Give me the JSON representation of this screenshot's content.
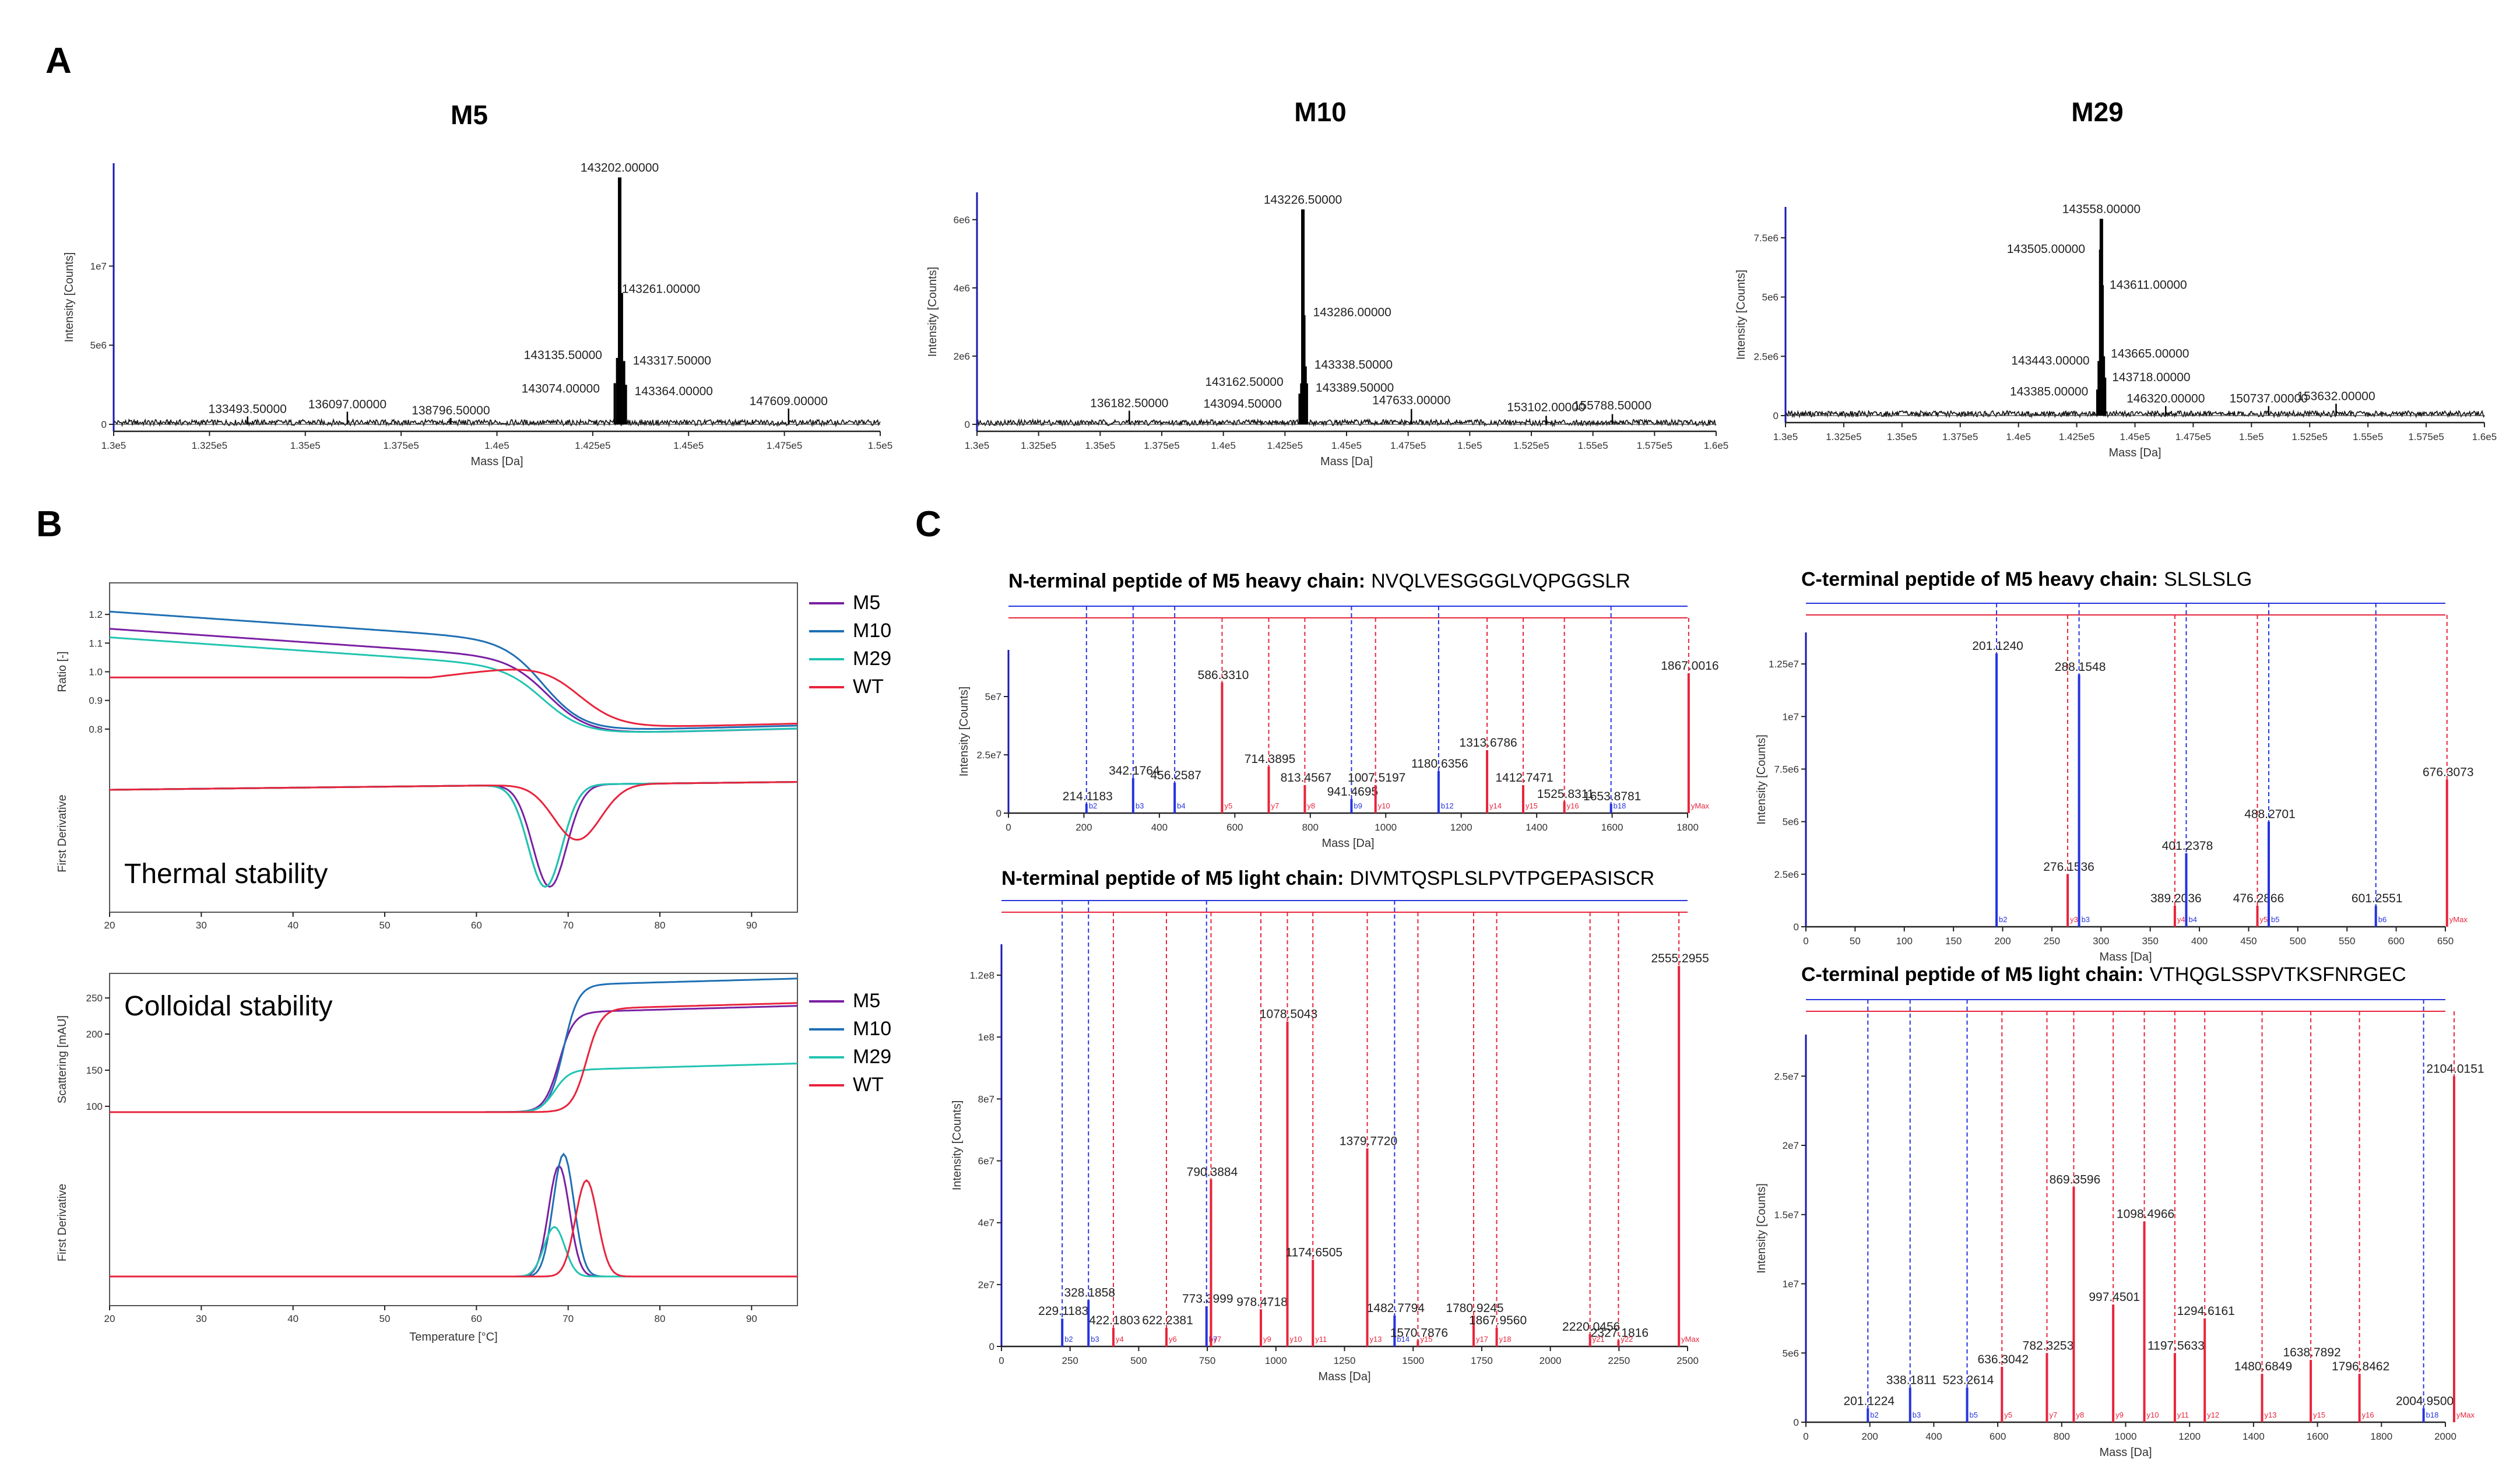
{
  "panel_labels": {
    "a": "A",
    "b": "B",
    "c": "C"
  },
  "colors": {
    "M5": "#7a1fa2",
    "M10": "#1f6fb4",
    "M29": "#21c4b0",
    "WT": "#e8243c",
    "b_ion": "#2533e0",
    "y_ion": "#e8243c",
    "axis": "#1a1ab0"
  },
  "chart_data": [
    {
      "id": "A-M5",
      "type": "line",
      "title": "M5",
      "xlabel": "Mass [Da]",
      "ylabel": "Intensity [Counts]",
      "xlim": [
        130000,
        150000
      ],
      "xticks": [
        "1.3e5",
        "1.325e5",
        "1.35e5",
        "1.375e5",
        "1.4e5",
        "1.425e5",
        "1.45e5",
        "1.475e5",
        "1.5e5"
      ],
      "ylim": [
        0,
        16500000
      ],
      "yticks": [
        "0",
        "5e6",
        "1e7"
      ],
      "peaks": [
        {
          "mass": 143202,
          "label": "143202.00000",
          "intensity": 15600000
        },
        {
          "mass": 143261,
          "label": "143261.00000",
          "intensity": 8300000
        },
        {
          "mass": 143135.5,
          "label": "143135.50000",
          "intensity": 4200000
        },
        {
          "mass": 143317.5,
          "label": "143317.50000",
          "intensity": 4000000
        },
        {
          "mass": 143074,
          "label": "143074.00000",
          "intensity": 2600000
        },
        {
          "mass": 143364,
          "label": "143364.00000",
          "intensity": 2500000
        },
        {
          "mass": 133493.5,
          "label": "133493.50000",
          "intensity": 500000
        },
        {
          "mass": 136097,
          "label": "136097.00000",
          "intensity": 800000
        },
        {
          "mass": 138796.5,
          "label": "138796.50000",
          "intensity": 400000
        },
        {
          "mass": 147609,
          "label": "147609.00000",
          "intensity": 1000000
        }
      ]
    },
    {
      "id": "A-M10",
      "type": "line",
      "title": "M10",
      "xlabel": "Mass [Da]",
      "ylabel": "Intensity [Counts]",
      "xlim": [
        130000,
        160000
      ],
      "xticks": [
        "1.3e5",
        "1.325e5",
        "1.35e5",
        "1.375e5",
        "1.4e5",
        "1.425e5",
        "1.45e5",
        "1.475e5",
        "1.5e5",
        "1.525e5",
        "1.55e5",
        "1.575e5",
        "1.6e5"
      ],
      "ylim": [
        0,
        6800000
      ],
      "yticks": [
        "0",
        "2e6",
        "4e6",
        "6e6"
      ],
      "peaks": [
        {
          "mass": 143226.5,
          "label": "143226.50000",
          "intensity": 6300000
        },
        {
          "mass": 143286,
          "label": "143286.00000",
          "intensity": 3200000
        },
        {
          "mass": 143338.5,
          "label": "143338.50000",
          "intensity": 1700000
        },
        {
          "mass": 143389.5,
          "label": "143389.50000",
          "intensity": 1200000
        },
        {
          "mass": 143162.5,
          "label": "143162.50000",
          "intensity": 1200000
        },
        {
          "mass": 143094.5,
          "label": "143094.50000",
          "intensity": 900000
        },
        {
          "mass": 136182.5,
          "label": "136182.50000",
          "intensity": 400000
        },
        {
          "mass": 147633,
          "label": "147633.00000",
          "intensity": 450000
        },
        {
          "mass": 153102,
          "label": "153102.00000",
          "intensity": 250000
        },
        {
          "mass": 155788.5,
          "label": "155788.50000",
          "intensity": 300000
        }
      ]
    },
    {
      "id": "A-M29",
      "type": "line",
      "title": "M29",
      "xlabel": "Mass [Da]",
      "ylabel": "Intensity [Counts]",
      "xlim": [
        130000,
        160000
      ],
      "xticks": [
        "1.3e5",
        "1.325e5",
        "1.35e5",
        "1.375e5",
        "1.4e5",
        "1.425e5",
        "1.45e5",
        "1.475e5",
        "1.5e5",
        "1.525e5",
        "1.55e5",
        "1.575e5",
        "1.6e5"
      ],
      "ylim": [
        0,
        8800000
      ],
      "yticks": [
        "0",
        "2.5e6",
        "5e6",
        "7.5e6"
      ],
      "peaks": [
        {
          "mass": 143558,
          "label": "143558.00000",
          "intensity": 8300000
        },
        {
          "mass": 143505,
          "label": "143505.00000",
          "intensity": 7000000
        },
        {
          "mass": 143611,
          "label": "143611.00000",
          "intensity": 5500000
        },
        {
          "mass": 143665,
          "label": "143665.00000",
          "intensity": 2500000
        },
        {
          "mass": 143443,
          "label": "143443.00000",
          "intensity": 2300000
        },
        {
          "mass": 143718,
          "label": "143718.00000",
          "intensity": 1600000
        },
        {
          "mass": 143385,
          "label": "143385.00000",
          "intensity": 1100000
        },
        {
          "mass": 146320,
          "label": "146320.00000",
          "intensity": 400000
        },
        {
          "mass": 150737,
          "label": "150737.00000",
          "intensity": 400000
        },
        {
          "mass": 153632,
          "label": "153632.00000",
          "intensity": 500000
        }
      ]
    },
    {
      "id": "B-thermal",
      "type": "line",
      "annotation": "Thermal stability",
      "ylabel_top": "Ratio [-]",
      "ylabel_bottom": "First Derivative",
      "xlim": [
        20,
        95
      ],
      "xticks": [
        "20",
        "30",
        "40",
        "50",
        "60",
        "70",
        "80",
        "90"
      ],
      "ylim_top": [
        0.7,
        1.3
      ],
      "yticks_top": [
        "0.8",
        "0.9",
        "1.0",
        "1.1",
        "1.2"
      ],
      "legend": [
        "M5",
        "M10",
        "M29",
        "WT"
      ],
      "series": [
        {
          "name": "M5",
          "ratio_start": 1.15,
          "ratio_end": 0.78,
          "tm": 68
        },
        {
          "name": "M10",
          "ratio_start": 1.21,
          "ratio_end": 0.79,
          "tm": 67.5
        },
        {
          "name": "M29",
          "ratio_start": 1.12,
          "ratio_end": 0.78,
          "tm": 67.5
        },
        {
          "name": "WT",
          "ratio_start": 0.98,
          "ratio_end": 0.8,
          "tm": 71
        }
      ]
    },
    {
      "id": "B-colloidal",
      "type": "line",
      "annotation": "Colloidal stability",
      "ylabel_top": "Scattering [mAU]",
      "ylabel_bottom": "First Derivative",
      "xlabel": "Temperature [°C]",
      "xlim": [
        20,
        95
      ],
      "xticks": [
        "20",
        "30",
        "40",
        "50",
        "60",
        "70",
        "80",
        "90"
      ],
      "ylim_top": [
        50,
        280
      ],
      "yticks_top": [
        "100",
        "150",
        "200",
        "250"
      ],
      "legend": [
        "M5",
        "M10",
        "M29",
        "WT"
      ],
      "series": [
        {
          "name": "M5",
          "start": 92,
          "end": 230,
          "tagg": 69
        },
        {
          "name": "M10",
          "start": 92,
          "end": 268,
          "tagg": 69.5
        },
        {
          "name": "M29",
          "start": 92,
          "end": 150,
          "tagg": 68.5
        },
        {
          "name": "WT",
          "start": 92,
          "end": 235,
          "tagg": 72
        }
      ]
    },
    {
      "id": "C-nt-heavy",
      "type": "bar",
      "title_prefix": "N-terminal peptide of M5 heavy chain:",
      "sequence": "NVQLVESGGGLVQPGGSLR",
      "xlabel": "Mass [Da]",
      "ylabel": "Intensity [Counts]",
      "xlim": [
        0,
        1900
      ],
      "xticks": [
        "0",
        "200",
        "400",
        "600",
        "800",
        "1000",
        "1200",
        "1400",
        "1600",
        "1800"
      ],
      "ylim": [
        0,
        70000000
      ],
      "yticks": [
        "0",
        "2.5e7",
        "5e7"
      ],
      "peaks": [
        {
          "mz": 214.1183,
          "label": "214.1183",
          "intensity": 4000000,
          "ion": "b2",
          "kind": "b"
        },
        {
          "mz": 342.1764,
          "label": "342.1764",
          "intensity": 15000000,
          "ion": "b3",
          "kind": "b"
        },
        {
          "mz": 456.2587,
          "label": "456.2587",
          "intensity": 13000000,
          "ion": "b4",
          "kind": "b"
        },
        {
          "mz": 586.331,
          "label": "586.3310",
          "intensity": 56000000,
          "ion": "y5",
          "kind": "y"
        },
        {
          "mz": 714.3895,
          "label": "714.3895",
          "intensity": 20000000,
          "ion": "y7",
          "kind": "y"
        },
        {
          "mz": 813.4567,
          "label": "813.4567",
          "intensity": 12000000,
          "ion": "y8",
          "kind": "y"
        },
        {
          "mz": 941.4695,
          "label": "941.4695",
          "intensity": 6000000,
          "ion": "b9",
          "kind": "b"
        },
        {
          "mz": 1007.5197,
          "label": "1007.5197",
          "intensity": 12000000,
          "ion": "y10",
          "kind": "y"
        },
        {
          "mz": 1180.6356,
          "label": "1180.6356",
          "intensity": 18000000,
          "ion": "b12",
          "kind": "b"
        },
        {
          "mz": 1313.6786,
          "label": "1313.6786",
          "intensity": 27000000,
          "ion": "y14",
          "kind": "y"
        },
        {
          "mz": 1412.7471,
          "label": "1412.7471",
          "intensity": 12000000,
          "ion": "y15",
          "kind": "y"
        },
        {
          "mz": 1525.8311,
          "label": "1525.8311",
          "intensity": 5000000,
          "ion": "y16",
          "kind": "y"
        },
        {
          "mz": 1653.8781,
          "label": "1653.8781",
          "intensity": 4000000,
          "ion": "b18",
          "kind": "b"
        },
        {
          "mz": 1867.0016,
          "label": "1867.0016",
          "intensity": 60000000,
          "ion": "yMax",
          "kind": "y"
        }
      ]
    },
    {
      "id": "C-nt-light",
      "type": "bar",
      "title_prefix": "N-terminal peptide of M5 light chain:",
      "sequence": "DIVMTQSPLSLPVTPGEPASISCR",
      "xlabel": "Mass [Da]",
      "ylabel": "Intensity [Counts]",
      "xlim": [
        0,
        2600
      ],
      "xticks": [
        "0",
        "250",
        "500",
        "750",
        "1000",
        "1250",
        "1500",
        "1750",
        "2000",
        "2250",
        "2500"
      ],
      "ylim": [
        0,
        130000000
      ],
      "yticks": [
        "0",
        "2e7",
        "4e7",
        "6e7",
        "8e7",
        "1e8",
        "1.2e8"
      ],
      "peaks": [
        {
          "mz": 229.1183,
          "label": "229.1183",
          "intensity": 9000000,
          "ion": "b2",
          "kind": "b"
        },
        {
          "mz": 328.1858,
          "label": "328.1858",
          "intensity": 15000000,
          "ion": "b3",
          "kind": "b"
        },
        {
          "mz": 422.1803,
          "label": "422.1803",
          "intensity": 6000000,
          "ion": "y4",
          "kind": "y"
        },
        {
          "mz": 622.2381,
          "label": "622.2381",
          "intensity": 6000000,
          "ion": "y6",
          "kind": "y"
        },
        {
          "mz": 773.3999,
          "label": "773.3999",
          "intensity": 13000000,
          "ion": "b7",
          "kind": "b"
        },
        {
          "mz": 790.3884,
          "label": "790.3884",
          "intensity": 54000000,
          "ion": "y7",
          "kind": "y"
        },
        {
          "mz": 978.4718,
          "label": "978.4718",
          "intensity": 12000000,
          "ion": "y9",
          "kind": "y"
        },
        {
          "mz": 1078.5043,
          "label": "1078.5043",
          "intensity": 105000000,
          "ion": "y10",
          "kind": "y"
        },
        {
          "mz": 1174.6505,
          "label": "1174.6505",
          "intensity": 28000000,
          "ion": "y11",
          "kind": "y"
        },
        {
          "mz": 1379.772,
          "label": "1379.7720",
          "intensity": 64000000,
          "ion": "y13",
          "kind": "y"
        },
        {
          "mz": 1482.7794,
          "label": "1482.7794",
          "intensity": 10000000,
          "ion": "b14",
          "kind": "b"
        },
        {
          "mz": 1570.7876,
          "label": "1570.7876",
          "intensity": 2000000,
          "ion": "y15",
          "kind": "y"
        },
        {
          "mz": 1780.9245,
          "label": "1780.9245",
          "intensity": 10000000,
          "ion": "y17",
          "kind": "y"
        },
        {
          "mz": 1867.956,
          "label": "1867.9560",
          "intensity": 6000000,
          "ion": "y18",
          "kind": "y"
        },
        {
          "mz": 2220.0456,
          "label": "2220.0456",
          "intensity": 4000000,
          "ion": "y21",
          "kind": "y"
        },
        {
          "mz": 2327.1816,
          "label": "2327.1816",
          "intensity": 2000000,
          "ion": "y22",
          "kind": "y"
        },
        {
          "mz": 2555.2955,
          "label": "2555.2955",
          "intensity": 123000000,
          "ion": "yMax",
          "kind": "y"
        }
      ]
    },
    {
      "id": "C-ct-heavy",
      "type": "bar",
      "title_prefix": "C-terminal peptide of M5 heavy chain:",
      "sequence": "SLSLSLG",
      "xlabel": "Mass [Da]",
      "ylabel": "Intensity [Counts]",
      "xlim": [
        0,
        700
      ],
      "xticks": [
        "0",
        "50",
        "100",
        "150",
        "200",
        "250",
        "300",
        "350",
        "400",
        "450",
        "500",
        "550",
        "600",
        "650"
      ],
      "ylim": [
        0,
        14000000
      ],
      "yticks": [
        "0",
        "2.5e6",
        "5e6",
        "7.5e6",
        "1e7",
        "1.25e7"
      ],
      "peaks": [
        {
          "mz": 201.124,
          "label": "201.1240",
          "intensity": 13000000,
          "ion": "b2",
          "kind": "b"
        },
        {
          "mz": 276.1536,
          "label": "276.1536",
          "intensity": 2500000,
          "ion": "y3",
          "kind": "y"
        },
        {
          "mz": 288.1548,
          "label": "288.1548",
          "intensity": 12000000,
          "ion": "b3",
          "kind": "b"
        },
        {
          "mz": 389.2036,
          "label": "389.2036",
          "intensity": 1000000,
          "ion": "y4",
          "kind": "y"
        },
        {
          "mz": 401.2378,
          "label": "401.2378",
          "intensity": 3500000,
          "ion": "b4",
          "kind": "b"
        },
        {
          "mz": 476.2866,
          "label": "476.2866",
          "intensity": 1000000,
          "ion": "y5",
          "kind": "y"
        },
        {
          "mz": 488.2701,
          "label": "488.2701",
          "intensity": 5000000,
          "ion": "b5",
          "kind": "b"
        },
        {
          "mz": 601.2551,
          "label": "601.2551",
          "intensity": 1000000,
          "ion": "b6",
          "kind": "b"
        },
        {
          "mz": 676.3073,
          "label": "676.3073",
          "intensity": 7000000,
          "ion": "yMax",
          "kind": "y"
        }
      ]
    },
    {
      "id": "C-ct-light",
      "type": "bar",
      "title_prefix": "C-terminal peptide of M5 light chain:",
      "sequence": "VTHQGLSSPVTKSFNRGEC",
      "xlabel": "Mass [Da]",
      "ylabel": "Intensity [Counts]",
      "xlim": [
        0,
        2100
      ],
      "xticks": [
        "0",
        "200",
        "400",
        "600",
        "800",
        "1000",
        "1200",
        "1400",
        "1600",
        "1800",
        "2000"
      ],
      "ylim": [
        0,
        28000000
      ],
      "yticks": [
        "0",
        "5e6",
        "1e7",
        "1.5e7",
        "2e7",
        "2.5e7"
      ],
      "peaks": [
        {
          "mz": 201.1224,
          "label": "201.1224",
          "intensity": 1000000,
          "ion": "b2",
          "kind": "b"
        },
        {
          "mz": 338.1811,
          "label": "338.1811",
          "intensity": 2500000,
          "ion": "b3",
          "kind": "b"
        },
        {
          "mz": 523.2614,
          "label": "523.2614",
          "intensity": 2500000,
          "ion": "b5",
          "kind": "b"
        },
        {
          "mz": 636.3042,
          "label": "636.3042",
          "intensity": 4000000,
          "ion": "y5",
          "kind": "y"
        },
        {
          "mz": 782.3253,
          "label": "782.3253",
          "intensity": 5000000,
          "ion": "y7",
          "kind": "y"
        },
        {
          "mz": 869.3596,
          "label": "869.3596",
          "intensity": 17000000,
          "ion": "y8",
          "kind": "y"
        },
        {
          "mz": 997.4501,
          "label": "997.4501",
          "intensity": 8500000,
          "ion": "y9",
          "kind": "y"
        },
        {
          "mz": 1098.4966,
          "label": "1098.4966",
          "intensity": 14500000,
          "ion": "y10",
          "kind": "y"
        },
        {
          "mz": 1197.5633,
          "label": "1197.5633",
          "intensity": 5000000,
          "ion": "y11",
          "kind": "y"
        },
        {
          "mz": 1294.6161,
          "label": "1294.6161",
          "intensity": 7500000,
          "ion": "y12",
          "kind": "y"
        },
        {
          "mz": 1480.6849,
          "label": "1480.6849",
          "intensity": 3500000,
          "ion": "y13",
          "kind": "y"
        },
        {
          "mz": 1638.7892,
          "label": "1638.7892",
          "intensity": 4500000,
          "ion": "y15",
          "kind": "y"
        },
        {
          "mz": 1796.8462,
          "label": "1796.8462",
          "intensity": 3500000,
          "ion": "y16",
          "kind": "y"
        },
        {
          "mz": 2004.95,
          "label": "2004.9500",
          "intensity": 1000000,
          "ion": "b18",
          "kind": "b"
        },
        {
          "mz": 2104.0151,
          "label": "2104.0151",
          "intensity": 25000000,
          "ion": "yMax",
          "kind": "y"
        }
      ]
    }
  ]
}
